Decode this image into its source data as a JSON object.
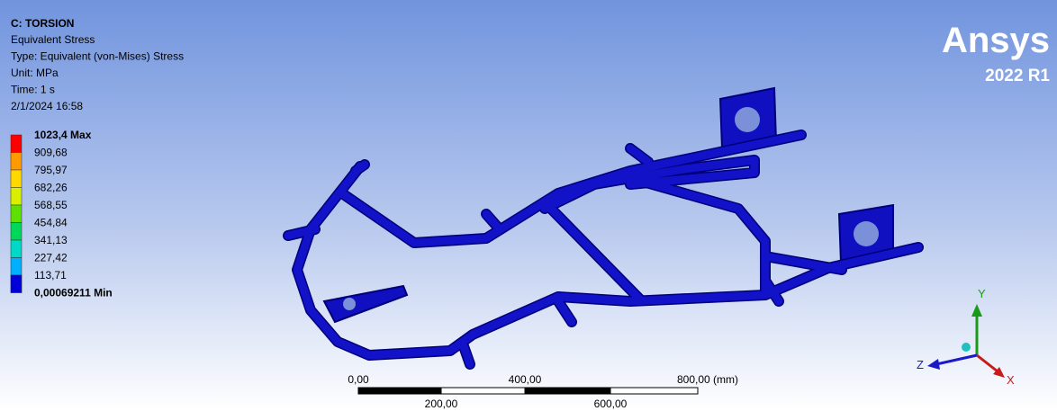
{
  "header": {
    "title": "C: TORSION",
    "lines": [
      "Equivalent Stress",
      "Type: Equivalent (von-Mises) Stress",
      "Unit: MPa",
      "Time: 1 s",
      "2/1/2024 16:58"
    ]
  },
  "legend": {
    "entries": [
      {
        "label": "1023,4 Max",
        "color": "#ff0000"
      },
      {
        "label": "909,68",
        "color": "#ff9a00"
      },
      {
        "label": "795,97",
        "color": "#ffd800"
      },
      {
        "label": "682,26",
        "color": "#d8f000"
      },
      {
        "label": "568,55",
        "color": "#5ee000"
      },
      {
        "label": "454,84",
        "color": "#00d85a"
      },
      {
        "label": "341,13",
        "color": "#00d8c8"
      },
      {
        "label": "227,42",
        "color": "#00b0ff"
      },
      {
        "label": "113,71",
        "color": "#0040ff"
      },
      {
        "label": "0,00069211 Min",
        "color": "#0000d8"
      }
    ]
  },
  "logo": {
    "name": "Ansys",
    "version": "2022 R1"
  },
  "scale_bar": {
    "top_labels": [
      "0,00",
      "400,00",
      "800,00 (mm)"
    ],
    "bottom_labels": [
      "200,00",
      "600,00"
    ]
  },
  "triad": {
    "y": "Y",
    "z": "Z",
    "x": "X"
  }
}
